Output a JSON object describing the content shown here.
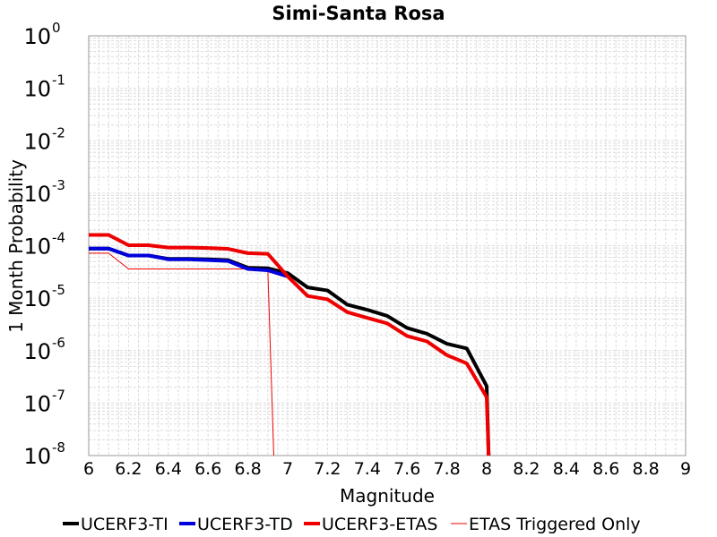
{
  "chart_data": {
    "type": "line",
    "title": "Simi-Santa Rosa",
    "xlabel": "Magnitude",
    "ylabel": "1 Month Probability",
    "xlim": [
      6,
      9
    ],
    "ylim": [
      1e-08,
      1
    ],
    "yscale": "log",
    "grid": true,
    "legend_position": "bottom",
    "x_ticks": [
      "6",
      "6.2",
      "6.4",
      "6.6",
      "6.8",
      "7",
      "7.2",
      "7.4",
      "7.6",
      "7.8",
      "8",
      "8.2",
      "8.4",
      "8.6",
      "8.8",
      "9"
    ],
    "y_ticks": [
      {
        "base": "10",
        "exp": "0"
      },
      {
        "base": "10",
        "exp": "-1"
      },
      {
        "base": "10",
        "exp": "-2"
      },
      {
        "base": "10",
        "exp": "-3"
      },
      {
        "base": "10",
        "exp": "-4"
      },
      {
        "base": "10",
        "exp": "-5"
      },
      {
        "base": "10",
        "exp": "-6"
      },
      {
        "base": "10",
        "exp": "-7"
      },
      {
        "base": "10",
        "exp": "-8"
      }
    ],
    "series": [
      {
        "name": "UCERF3-TI",
        "color": "#000000",
        "points": [
          [
            6.0,
            8.8e-05
          ],
          [
            6.1,
            8.8e-05
          ],
          [
            6.2,
            6.5e-05
          ],
          [
            6.3,
            6.5e-05
          ],
          [
            6.4,
            5.6e-05
          ],
          [
            6.5,
            5.6e-05
          ],
          [
            6.6,
            5.5e-05
          ],
          [
            6.7,
            5.3e-05
          ],
          [
            6.8,
            3.8e-05
          ],
          [
            6.9,
            3.7e-05
          ],
          [
            7.0,
            3e-05
          ],
          [
            7.1,
            1.6e-05
          ],
          [
            7.2,
            1.4e-05
          ],
          [
            7.3,
            7.5e-06
          ],
          [
            7.4,
            6e-06
          ],
          [
            7.5,
            4.6e-06
          ],
          [
            7.6,
            2.7e-06
          ],
          [
            7.7,
            2.1e-06
          ],
          [
            7.8,
            1.35e-06
          ],
          [
            7.9,
            1.1e-06
          ],
          [
            8.0,
            2.1e-07
          ],
          [
            8.01,
            1e-08
          ]
        ]
      },
      {
        "name": "UCERF3-TD",
        "color": "#0000dd",
        "points": [
          [
            6.0,
            8.8e-05
          ],
          [
            6.1,
            8.8e-05
          ],
          [
            6.2,
            6.5e-05
          ],
          [
            6.3,
            6.5e-05
          ],
          [
            6.4,
            5.5e-05
          ],
          [
            6.5,
            5.5e-05
          ],
          [
            6.6,
            5.3e-05
          ],
          [
            6.7,
            5.1e-05
          ],
          [
            6.8,
            3.6e-05
          ],
          [
            6.9,
            3.4e-05
          ],
          [
            7.0,
            2.6e-05
          ]
        ]
      },
      {
        "name": "UCERF3-ETAS",
        "color": "#ee0000",
        "points": [
          [
            6.0,
            0.00016
          ],
          [
            6.1,
            0.00016
          ],
          [
            6.2,
            0.000102
          ],
          [
            6.3,
            0.000102
          ],
          [
            6.4,
            9.2e-05
          ],
          [
            6.5,
            9.2e-05
          ],
          [
            6.6,
            9e-05
          ],
          [
            6.7,
            8.7e-05
          ],
          [
            6.8,
            7.2e-05
          ],
          [
            6.9,
            7e-05
          ],
          [
            7.0,
            2.6e-05
          ],
          [
            7.1,
            1.1e-05
          ],
          [
            7.2,
            9.5e-06
          ],
          [
            7.3,
            5.4e-06
          ],
          [
            7.4,
            4.2e-06
          ],
          [
            7.5,
            3.3e-06
          ],
          [
            7.6,
            1.9e-06
          ],
          [
            7.7,
            1.5e-06
          ],
          [
            7.8,
            8.2e-07
          ],
          [
            7.9,
            5.7e-07
          ],
          [
            8.0,
            1.3e-07
          ],
          [
            8.01,
            1e-08
          ]
        ]
      },
      {
        "name": "ETAS Triggered Only",
        "color": "#ee0000",
        "thin": true,
        "points": [
          [
            6.0,
            7.2e-05
          ],
          [
            6.1,
            7.2e-05
          ],
          [
            6.2,
            3.6e-05
          ],
          [
            6.3,
            3.6e-05
          ],
          [
            6.4,
            3.6e-05
          ],
          [
            6.5,
            3.6e-05
          ],
          [
            6.6,
            3.6e-05
          ],
          [
            6.7,
            3.6e-05
          ],
          [
            6.8,
            3.6e-05
          ],
          [
            6.9,
            3.6e-05
          ],
          [
            6.93,
            1e-08
          ]
        ]
      }
    ]
  }
}
